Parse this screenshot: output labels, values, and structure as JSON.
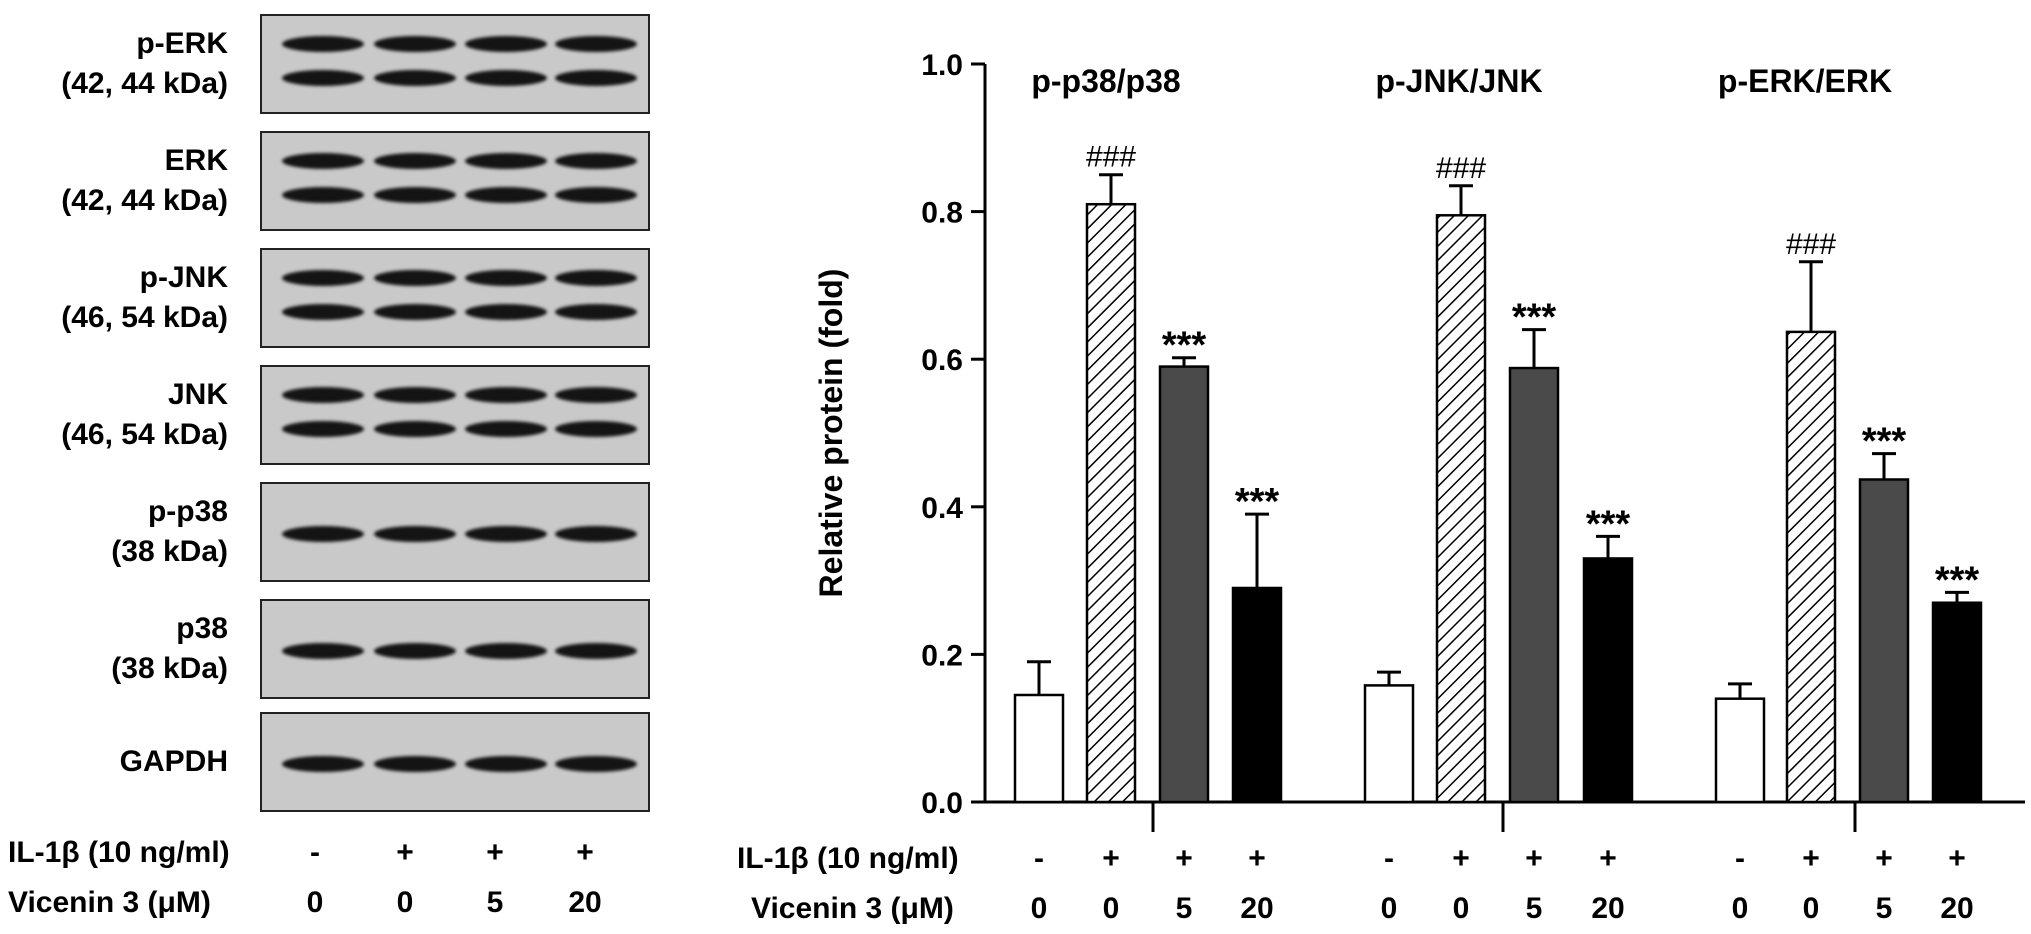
{
  "blots": [
    {
      "name": "p-ERK",
      "size": "(42, 44 kDa)",
      "bands": 2
    },
    {
      "name": "ERK",
      "size": "(42, 44 kDa)",
      "bands": 2
    },
    {
      "name": "p-JNK",
      "size": "(46, 54 kDa)",
      "bands": 2
    },
    {
      "name": "JNK",
      "size": "(46, 54 kDa)",
      "bands": 2
    },
    {
      "name": "p-p38",
      "size": "(38 kDa)",
      "bands": 1
    },
    {
      "name": "p38",
      "size": "(38 kDa)",
      "bands": 1
    },
    {
      "name": "GAPDH",
      "size": "",
      "bands": 1
    }
  ],
  "treatment": {
    "il1b_label": "IL-1β (10 ng/ml)",
    "vicenin_label": "Vicenin 3 (μM)",
    "il1b_values": [
      "-",
      "+",
      "+",
      "+"
    ],
    "vicenin_values": [
      "0",
      "0",
      "5",
      "20"
    ]
  },
  "chart_data": {
    "type": "bar",
    "ylabel": "Relative protein (fold)",
    "ylim": [
      0.0,
      1.0
    ],
    "yticks": [
      "0.0",
      "0.2",
      "0.4",
      "0.6",
      "0.8",
      "1.0"
    ],
    "bar_colors": [
      "#ffffff",
      "hatch",
      "#4a4a4a",
      "#000000"
    ],
    "groups": [
      {
        "title": "p-p38/p38",
        "values": [
          0.145,
          0.81,
          0.59,
          0.29
        ],
        "errors": [
          0.045,
          0.04,
          0.012,
          0.1
        ],
        "annotations": [
          "",
          "###",
          "***",
          "***"
        ]
      },
      {
        "title": "p-JNK/JNK",
        "values": [
          0.158,
          0.795,
          0.588,
          0.33
        ],
        "errors": [
          0.018,
          0.04,
          0.052,
          0.03
        ],
        "annotations": [
          "",
          "###",
          "***",
          "***"
        ]
      },
      {
        "title": "p-ERK/ERK",
        "values": [
          0.14,
          0.637,
          0.437,
          0.27
        ],
        "errors": [
          0.02,
          0.095,
          0.035,
          0.014
        ],
        "annotations": [
          "",
          "###",
          "***",
          "***"
        ]
      }
    ]
  }
}
